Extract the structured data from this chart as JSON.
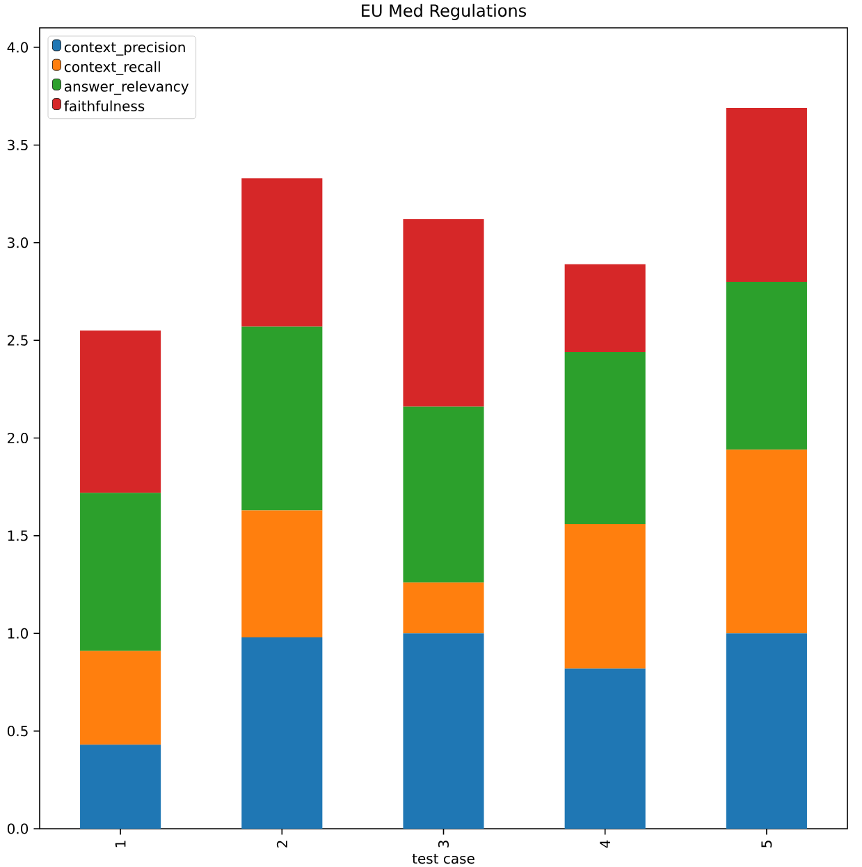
{
  "chart_data": {
    "type": "bar",
    "title": "EU Med Regulations",
    "xlabel": "test case",
    "stacked": true,
    "categories": [
      "1",
      "2",
      "3",
      "4",
      "5"
    ],
    "series": [
      {
        "name": "context_precision",
        "color": "#1f77b4",
        "values": [
          0.43,
          0.98,
          1.0,
          0.82,
          1.0
        ]
      },
      {
        "name": "context_recall",
        "color": "#ff7f0e",
        "values": [
          0.48,
          0.65,
          0.26,
          0.74,
          0.94
        ]
      },
      {
        "name": "answer_relevancy",
        "color": "#2ca02c",
        "values": [
          0.81,
          0.94,
          0.9,
          0.88,
          0.86
        ]
      },
      {
        "name": "faithfulness",
        "color": "#d62728",
        "values": [
          0.83,
          0.76,
          0.96,
          0.45,
          0.89
        ]
      }
    ],
    "ylim": [
      0,
      4.1
    ],
    "yticks": [
      {
        "value": 0,
        "label": "0.0"
      },
      0.5,
      {
        "value": 1,
        "label": "1.0"
      },
      1.5,
      {
        "value": 2,
        "label": "2.0"
      },
      2.5,
      {
        "value": 3,
        "label": "3.0"
      },
      3.5,
      {
        "value": 4,
        "label": "4.0"
      }
    ],
    "legend": "top left",
    "grid": false
  }
}
